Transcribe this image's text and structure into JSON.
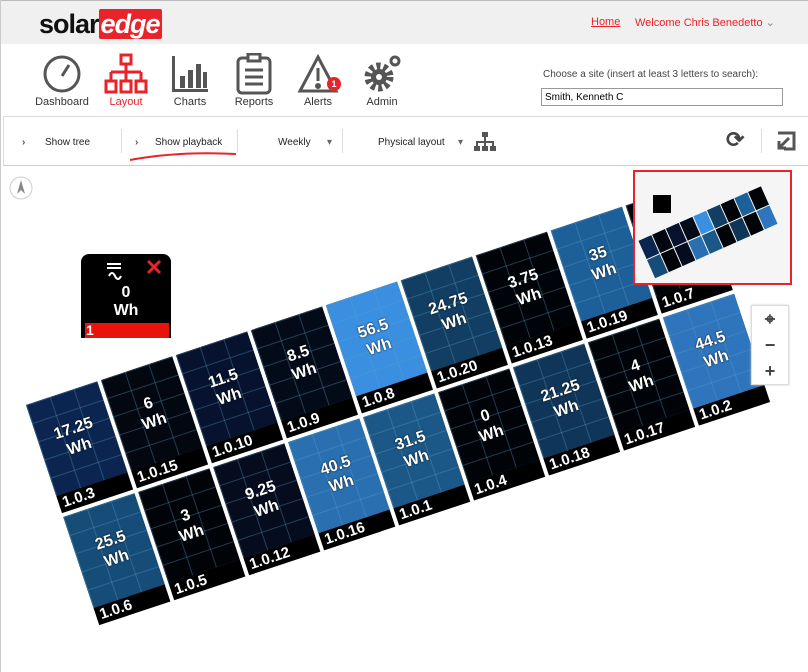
{
  "header": {
    "logo": "solaredge",
    "logo_a": "solar",
    "logo_b": "edge",
    "home": "Home",
    "welcome": "Welcome Chris Benedetto"
  },
  "nav": [
    {
      "label": "Dashboard",
      "icon": "gauge-icon"
    },
    {
      "label": "Layout",
      "icon": "layout-tree-icon",
      "active": true
    },
    {
      "label": "Charts",
      "icon": "bar-chart-icon"
    },
    {
      "label": "Reports",
      "icon": "clipboard-icon"
    },
    {
      "label": "Alerts",
      "icon": "warning-icon",
      "badge": "1"
    },
    {
      "label": "Admin",
      "icon": "gears-icon"
    }
  ],
  "site": {
    "label": "Choose a site (insert at least 3 letters to search):",
    "value": "Smith, Kenneth C"
  },
  "toolbar": {
    "show_tree": "Show tree",
    "show_playback": "Show playback",
    "period": "Weekly",
    "layout_mode": "Physical layout"
  },
  "inverter": {
    "value": "0",
    "unit": "Wh",
    "id": "1"
  },
  "colors": {
    "accent": "#e8232a"
  },
  "panels_row1": [
    {
      "id": "1.0.3",
      "value": "17.25",
      "unit": "Wh",
      "color": "#0b2550"
    },
    {
      "id": "1.0.15",
      "value": "6",
      "unit": "Wh",
      "color": "#020710"
    },
    {
      "id": "1.0.10",
      "value": "11.5",
      "unit": "Wh",
      "color": "#06122e"
    },
    {
      "id": "1.0.9",
      "value": "8.5",
      "unit": "Wh",
      "color": "#040b18"
    },
    {
      "id": "1.0.8",
      "value": "56.5",
      "unit": "Wh",
      "color": "#3a8fe0"
    },
    {
      "id": "1.0.20",
      "value": "24.75",
      "unit": "Wh",
      "color": "#113e62"
    },
    {
      "id": "1.0.13",
      "value": "3.75",
      "unit": "Wh",
      "color": "#000408"
    },
    {
      "id": "1.0.19",
      "value": "35",
      "unit": "Wh",
      "color": "#1d5f98"
    },
    {
      "id": "1.0.7",
      "value": "",
      "unit": "",
      "color": "#000408"
    }
  ],
  "panels_row2": [
    {
      "id": "1.0.6",
      "value": "25.5",
      "unit": "Wh",
      "color": "#164c78"
    },
    {
      "id": "1.0.5",
      "value": "3",
      "unit": "Wh",
      "color": "#000408"
    },
    {
      "id": "1.0.12",
      "value": "9.25",
      "unit": "Wh",
      "color": "#050c1e"
    },
    {
      "id": "1.0.16",
      "value": "40.5",
      "unit": "Wh",
      "color": "#2a6fb0"
    },
    {
      "id": "1.0.1",
      "value": "31.5",
      "unit": "Wh",
      "color": "#1b5888"
    },
    {
      "id": "1.0.4",
      "value": "0",
      "unit": "Wh",
      "color": "#000408"
    },
    {
      "id": "1.0.18",
      "value": "21.25",
      "unit": "Wh",
      "color": "#0f3558"
    },
    {
      "id": "1.0.17",
      "value": "4",
      "unit": "Wh",
      "color": "#000408"
    },
    {
      "id": "1.0.2",
      "value": "44.5",
      "unit": "Wh",
      "color": "#2e75bd"
    }
  ]
}
